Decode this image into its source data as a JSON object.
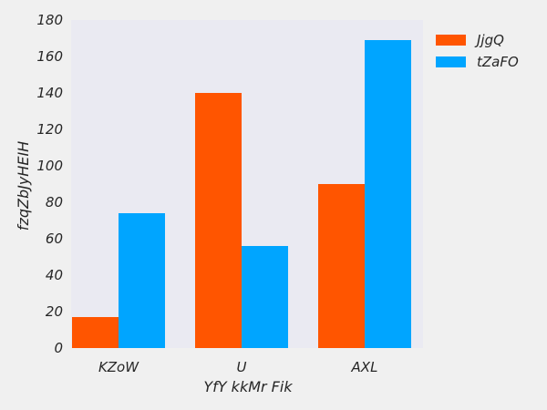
{
  "chart_data": {
    "type": "bar",
    "title": "",
    "xlabel": "YfY kkMr  Fik",
    "ylabel": "fzqZbJyHEIH",
    "categories": [
      "KZoW",
      "U",
      "AXL"
    ],
    "series": [
      {
        "name": "JjgQ",
        "values": [
          17,
          140,
          90
        ],
        "color": "#ff5500"
      },
      {
        "name": "tZaFO",
        "values": [
          74,
          56,
          169
        ],
        "color": "#00a5ff"
      }
    ],
    "ylim": [
      0,
      180
    ],
    "yticks": [
      0,
      20,
      40,
      60,
      80,
      100,
      120,
      140,
      160,
      180
    ],
    "grid": false,
    "plot_background": "#eaeaf2",
    "page_background": "#f0f0f0",
    "legend_position": "outside-top-right"
  }
}
